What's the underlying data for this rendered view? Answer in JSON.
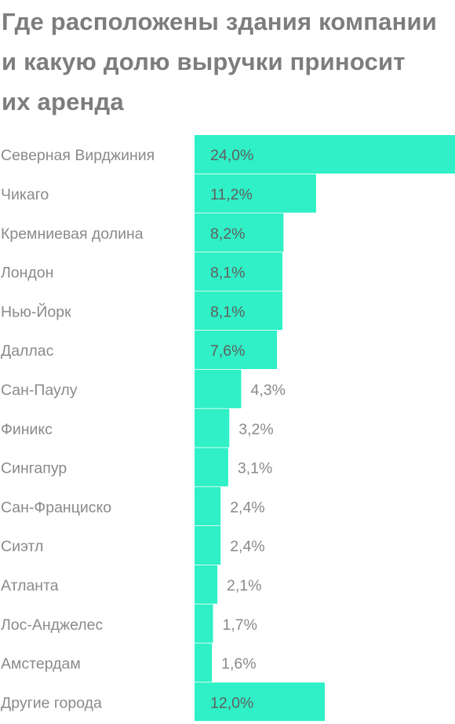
{
  "chart_data": {
    "type": "bar",
    "orientation": "horizontal",
    "title": "Где расположены здания компании и какую долю выручки приносит их аренда",
    "categories": [
      "Северная Вирджиния",
      "Чикаго",
      "Кремниевая долина",
      "Лондон",
      "Нью-Йорк",
      "Даллас",
      "Сан-Паулу",
      "Финикс",
      "Сингапур",
      "Сан-Франциско",
      "Сиэтл",
      "Атланта",
      "Лос-Анджелес",
      "Амстердам",
      "Другие города"
    ],
    "values": [
      24.0,
      11.2,
      8.2,
      8.1,
      8.1,
      7.6,
      4.3,
      3.2,
      3.1,
      2.4,
      2.4,
      2.1,
      1.7,
      1.6,
      12.0
    ],
    "value_labels": [
      "24,0%",
      "11,2%",
      "8,2%",
      "8,1%",
      "8,1%",
      "7,6%",
      "4,3%",
      "3,2%",
      "3,1%",
      "2,4%",
      "2,4%",
      "2,1%",
      "1,7%",
      "1,6%",
      "12,0%"
    ],
    "xlabel": "",
    "ylabel": "",
    "xlim": [
      0,
      24
    ],
    "grid": false,
    "legend": "none"
  },
  "colors": {
    "bar": "#2ff0c6",
    "title": "#7d7d7d",
    "category_label": "#8a8a8a",
    "value_label_inside": "#5f5f5f",
    "value_label_outside": "#8a8a8a"
  }
}
